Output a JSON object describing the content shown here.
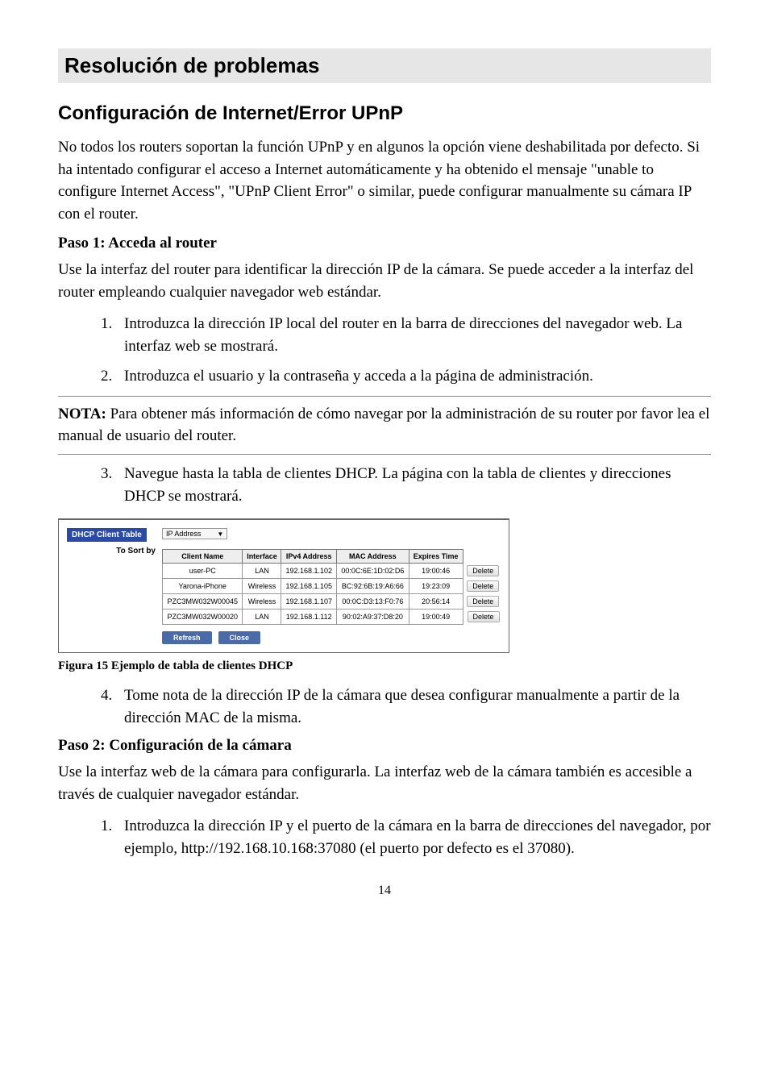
{
  "headings": {
    "h1": "Resolución de problemas",
    "h2": "Configuración de Internet/Error UPnP"
  },
  "intro_para": "No todos los routers soportan la función UPnP y en algunos la opción viene deshabilitada por defecto. Si ha intentado configurar el acceso a Internet automáticamente y ha obtenido el mensaje \"unable to configure Internet Access\", \"UPnP Client Error\" o similar, puede configurar manualmente su cámara IP con el router.",
  "step1": {
    "title": "Paso 1: Acceda al router",
    "para": "Use la interfaz del router para identificar la dirección IP de la cámara. Se puede acceder a la interfaz del router empleando cualquier navegador web estándar.",
    "list12": [
      "Introduzca la dirección IP local del router en la barra de direcciones del navegador web. La interfaz web se mostrará.",
      "Introduzca el usuario y la contraseña y acceda a la página de administración."
    ],
    "note_label": "NOTA:",
    "note_text": " Para obtener más información de cómo navegar por la administración de su router por favor lea el manual de usuario del router.",
    "list3": [
      "Navegue hasta la tabla de clientes DHCP. La página con la tabla de clientes y direcciones DHCP se mostrará."
    ],
    "list4": [
      "Tome nota de la dirección IP de la cámara que desea configurar manualmente a partir de la dirección MAC de la misma."
    ]
  },
  "figure": {
    "caption": "Figura 15 Ejemplo de tabla de clientes DHCP",
    "badge": "DHCP Client Table",
    "sort_by_label": "To Sort by",
    "sort_select_value": "IP Address",
    "columns": [
      "Client Name",
      "Interface",
      "IPv4 Address",
      "MAC Address",
      "Expires Time"
    ],
    "rows": [
      [
        "user-PC",
        "LAN",
        "192.168.1.102",
        "00:0C:6E:1D:02:D6",
        "19:00:46"
      ],
      [
        "Yarona-iPhone",
        "Wireless",
        "192.168.1.105",
        "BC:92:6B:19:A6:66",
        "19:23:09"
      ],
      [
        "PZC3MW032W00045",
        "Wireless",
        "192.168.1.107",
        "00:0C:D3:13:F0:76",
        "20:56:14"
      ],
      [
        "PZC3MW032W00020",
        "LAN",
        "192.168.1.112",
        "90:02:A9:37:D8:20",
        "19:00:49"
      ]
    ],
    "delete_label": "Delete",
    "refresh_label": "Refresh",
    "close_label": "Close"
  },
  "step2": {
    "title": "Paso 2: Configuración de la cámara",
    "para": "Use la interfaz web de la cámara para configurarla. La interfaz web de la cámara también es accesible a través de cualquier navegador estándar.",
    "list": [
      "Introduzca la dirección IP y el puerto de la cámara en la barra de direcciones del navegador, por ejemplo, http://192.168.10.168:37080 (el puerto por defecto es el 37080)."
    ]
  },
  "page_number": "14"
}
